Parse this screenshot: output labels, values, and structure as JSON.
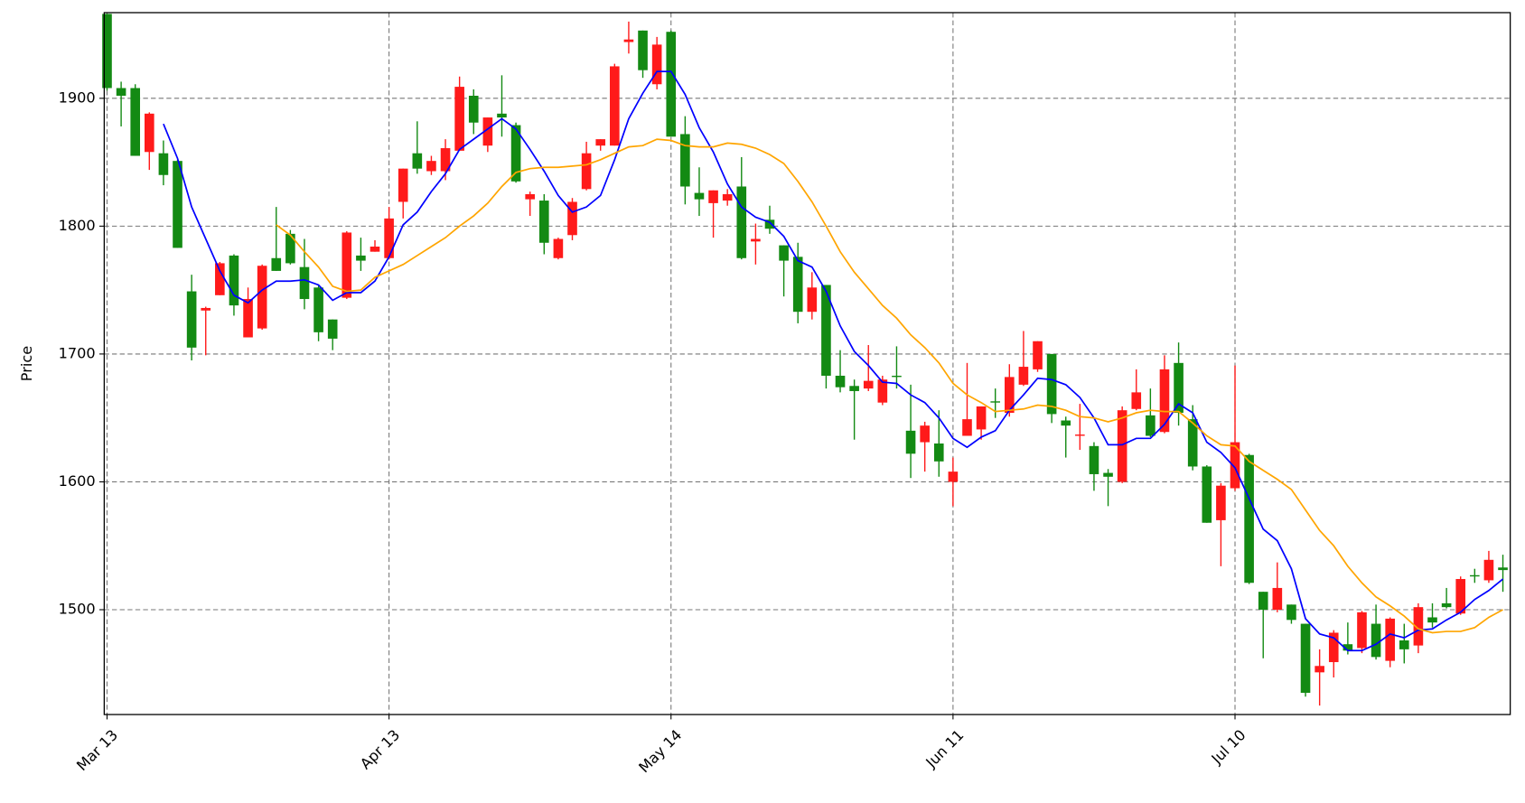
{
  "chart_data": {
    "type": "candlestick",
    "y_label": "Price",
    "categories": [
      "Mar 13",
      null,
      null,
      null,
      null,
      null,
      null,
      null,
      null,
      null,
      null,
      null,
      null,
      null,
      null,
      null,
      null,
      null,
      null,
      null,
      "Apr 13",
      null,
      null,
      null,
      null,
      null,
      null,
      null,
      null,
      null,
      null,
      null,
      null,
      null,
      null,
      null,
      null,
      null,
      null,
      null,
      "May 14",
      null,
      null,
      null,
      null,
      null,
      null,
      null,
      null,
      null,
      null,
      null,
      null,
      null,
      null,
      null,
      null,
      null,
      null,
      null,
      "Jun 11",
      null,
      null,
      null,
      null,
      null,
      null,
      null,
      null,
      null,
      null,
      null,
      null,
      null,
      null,
      null,
      null,
      null,
      null,
      null,
      "Jul 10",
      null,
      null,
      null,
      null,
      null,
      null,
      null,
      null,
      null,
      null,
      null,
      null,
      null,
      null,
      null,
      null,
      null,
      null,
      null
    ],
    "open": [
      1966,
      1908,
      1908,
      1858,
      1857,
      1851,
      1749,
      1734,
      1746,
      1777,
      1713,
      1720,
      1775,
      1794,
      1768,
      1752,
      1727,
      1744,
      1777,
      1780,
      1775,
      1819,
      1857,
      1843,
      1843,
      1859,
      1902,
      1863,
      1888,
      1879,
      1821,
      1820,
      1775,
      1793,
      1829,
      1863,
      1863,
      1944,
      1953,
      1911,
      1952,
      1872,
      1826,
      1818,
      1820,
      1831,
      1788,
      1805,
      1785,
      1776,
      1733,
      1754,
      1683,
      1675,
      1673,
      1662,
      1683,
      1640,
      1631,
      1630,
      1600,
      1636,
      1641,
      1663,
      1654,
      1676,
      1688,
      1700,
      1648,
      1636,
      1628,
      1607,
      1600,
      1657,
      1652,
      1639,
      1693,
      1649,
      1612,
      1570,
      1595,
      1621,
      1514,
      1500,
      1504,
      1489,
      1451,
      1459,
      1473,
      1470,
      1489,
      1460,
      1476,
      1472,
      1494,
      1505,
      1497,
      1527,
      1523,
      1533
    ],
    "high": [
      1966,
      1913,
      1911,
      1889,
      1867,
      1852,
      1762,
      1737,
      1772,
      1778,
      1752,
      1770,
      1815,
      1797,
      1790,
      1754,
      1727,
      1796,
      1791,
      1789,
      1815,
      1845,
      1882,
      1855,
      1868,
      1917,
      1907,
      1885,
      1918,
      1881,
      1827,
      1825,
      1791,
      1822,
      1866,
      1868,
      1927,
      1960,
      1953,
      1948,
      1953,
      1886,
      1846,
      1828,
      1829,
      1854,
      1802,
      1816,
      1785,
      1787,
      1764,
      1754,
      1703,
      1680,
      1707,
      1683,
      1706,
      1676,
      1647,
      1656,
      1619,
      1693,
      1659,
      1673,
      1692,
      1718,
      1710,
      1700,
      1651,
      1661,
      1631,
      1610,
      1659,
      1688,
      1673,
      1699,
      1709,
      1660,
      1613,
      1599,
      1691,
      1622,
      1514,
      1537,
      1504,
      1489,
      1469,
      1484,
      1490,
      1499,
      1504,
      1494,
      1489,
      1505,
      1505,
      1517,
      1526,
      1532,
      1546,
      1543
    ],
    "low": [
      1906,
      1878,
      1855,
      1844,
      1832,
      1783,
      1695,
      1699,
      1746,
      1730,
      1713,
      1719,
      1765,
      1770,
      1735,
      1710,
      1703,
      1743,
      1765,
      1780,
      1774,
      1806,
      1841,
      1840,
      1836,
      1859,
      1872,
      1858,
      1870,
      1834,
      1808,
      1778,
      1774,
      1789,
      1828,
      1859,
      1863,
      1935,
      1916,
      1907,
      1870,
      1817,
      1808,
      1791,
      1816,
      1774,
      1770,
      1794,
      1745,
      1724,
      1727,
      1673,
      1670,
      1633,
      1671,
      1660,
      1673,
      1603,
      1608,
      1604,
      1581,
      1636,
      1633,
      1650,
      1651,
      1675,
      1686,
      1646,
      1619,
      1625,
      1593,
      1581,
      1599,
      1656,
      1635,
      1638,
      1644,
      1609,
      1568,
      1534,
      1593,
      1520,
      1462,
      1498,
      1489,
      1432,
      1425,
      1447,
      1465,
      1466,
      1461,
      1455,
      1458,
      1466,
      1486,
      1501,
      1496,
      1521,
      1521,
      1514
    ],
    "close": [
      1908,
      1902,
      1855,
      1888,
      1840,
      1783,
      1705,
      1736,
      1771,
      1738,
      1743,
      1769,
      1765,
      1771,
      1743,
      1717,
      1712,
      1795,
      1773,
      1784,
      1806,
      1845,
      1845,
      1851,
      1861,
      1909,
      1881,
      1885,
      1885,
      1835,
      1825,
      1787,
      1790,
      1819,
      1857,
      1868,
      1925,
      1946,
      1922,
      1942,
      1870,
      1831,
      1821,
      1828,
      1825,
      1775,
      1790,
      1798,
      1773,
      1733,
      1752,
      1683,
      1674,
      1671,
      1679,
      1680,
      1682,
      1622,
      1644,
      1616,
      1608,
      1649,
      1659,
      1662,
      1682,
      1690,
      1710,
      1653,
      1644,
      1637,
      1606,
      1604,
      1656,
      1670,
      1636,
      1688,
      1654,
      1612,
      1568,
      1597,
      1631,
      1521,
      1500,
      1517,
      1492,
      1435,
      1456,
      1482,
      1468,
      1498,
      1463,
      1493,
      1469,
      1502,
      1490,
      1502,
      1524,
      1526,
      1539,
      1531
    ],
    "up_color": "#ff1a1a",
    "down_color": "#138a13",
    "lines": [
      {
        "color": "#0000ff",
        "values": [
          null,
          null,
          null,
          null,
          1880,
          1853,
          1815,
          1790,
          1765,
          1746,
          1740,
          1750,
          1757,
          1757,
          1758,
          1754,
          1742,
          1748,
          1748,
          1757,
          1776,
          1801,
          1811,
          1827,
          1841,
          1860,
          1868,
          1876,
          1884,
          1876,
          1860,
          1843,
          1824,
          1811,
          1815,
          1824,
          1852,
          1884,
          1904,
          1921,
          1921,
          1903,
          1877,
          1858,
          1833,
          1815,
          1807,
          1803,
          1792,
          1773,
          1768,
          1749,
          1722,
          1702,
          1691,
          1678,
          1677,
          1668,
          1662,
          1650,
          1634,
          1627,
          1635,
          1640,
          1656,
          1668,
          1681,
          1680,
          1676,
          1666,
          1650,
          1629,
          1629,
          1634,
          1634,
          1645,
          1661,
          1654,
          1631,
          1623,
          1611,
          1587,
          1563,
          1554,
          1532,
          1493,
          1481,
          1478,
          1468,
          1468,
          1473,
          1481,
          1478,
          1484,
          1485,
          1492,
          1498,
          1508,
          1515,
          1524
        ]
      },
      {
        "color": "#ffa500",
        "values": [
          null,
          null,
          null,
          null,
          null,
          null,
          null,
          null,
          null,
          null,
          null,
          null,
          1801,
          1793,
          1780,
          1768,
          1753,
          1749,
          1750,
          1760,
          1765,
          1770,
          1777,
          1784,
          1791,
          1800,
          1808,
          1818,
          1831,
          1842,
          1845,
          1846,
          1846,
          1847,
          1848,
          1852,
          1857,
          1862,
          1863,
          1868,
          1867,
          1863,
          1862,
          1862,
          1865,
          1864,
          1861,
          1856,
          1849,
          1835,
          1819,
          1800,
          1780,
          1764,
          1751,
          1738,
          1728,
          1715,
          1705,
          1693,
          1677,
          1668,
          1662,
          1655,
          1656,
          1657,
          1660,
          1659,
          1656,
          1651,
          1650,
          1647,
          1650,
          1654,
          1656,
          1655,
          1655,
          1646,
          1636,
          1629,
          1628,
          1616,
          1609,
          1602,
          1594,
          1578,
          1562,
          1550,
          1534,
          1521,
          1510,
          1503,
          1495,
          1485,
          1482,
          1483,
          1483,
          1486,
          1494,
          1500
        ]
      }
    ],
    "ylim": [
      1418,
      1967
    ],
    "yticks": [
      1500,
      1600,
      1700,
      1800,
      1900
    ],
    "grid": true
  }
}
